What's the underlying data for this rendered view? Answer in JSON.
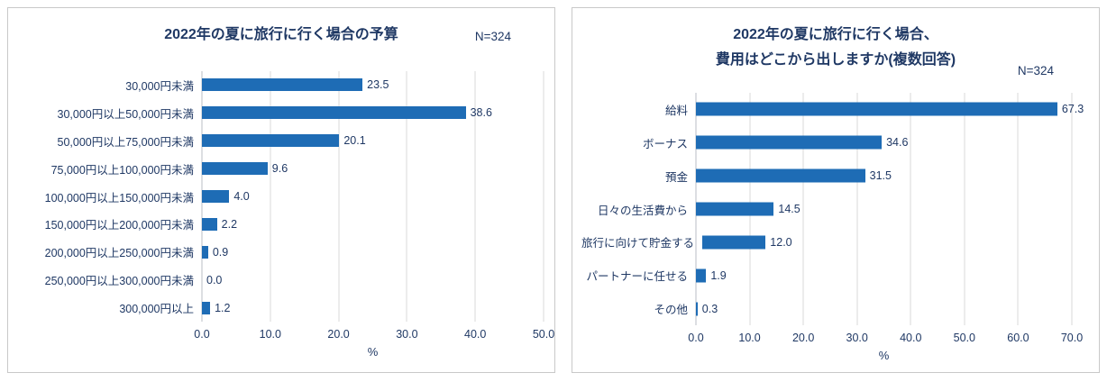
{
  "colors": {
    "bar": "#1E6CB5",
    "text": "#1F3864",
    "grid": "#D9D9D9",
    "panel_border": "#C9C9C9"
  },
  "chart_data": [
    {
      "type": "bar",
      "orientation": "horizontal",
      "title": "2022年の夏に旅行に行く場合の予算",
      "title_lines": [
        "2022年の夏に旅行に行く場合の予算"
      ],
      "n_label": "N=324",
      "categories": [
        "30,000円未満",
        "30,000円以上50,000円未満",
        "50,000円以上75,000円未満",
        "75,000円以上100,000円未満",
        "100,000円以上150,000円未満",
        "150,000円以上200,000円未満",
        "200,000円以上250,000円未満",
        "250,000円以上300,000円未満",
        "300,000円以上"
      ],
      "values": [
        23.5,
        38.6,
        20.1,
        9.6,
        4.0,
        2.2,
        0.9,
        0.0,
        1.2
      ],
      "xlabel": "%",
      "xlim": [
        0,
        50
      ],
      "xticks": [
        0,
        10,
        20,
        30,
        40,
        50
      ],
      "bar_color": "#1E6CB5",
      "grid": true,
      "legend": false
    },
    {
      "type": "bar",
      "orientation": "horizontal",
      "title": "2022年の夏に旅行に行く場合、費用はどこから出しますか(複数回答)",
      "title_lines": [
        "2022年の夏に旅行に行く場合、",
        "費用はどこから出しますか(複数回答)"
      ],
      "n_label": "N=324",
      "categories": [
        "給料",
        "ボーナス",
        "預金",
        "日々の生活費から",
        "旅行に向けて貯金する",
        "パートナーに任せる",
        "その他"
      ],
      "values": [
        67.3,
        34.6,
        31.5,
        14.5,
        12.0,
        1.9,
        0.3
      ],
      "xlabel": "%",
      "xlim": [
        0,
        70
      ],
      "xticks": [
        0,
        10,
        20,
        30,
        40,
        50,
        60,
        70
      ],
      "bar_color": "#1E6CB5",
      "grid": true,
      "legend": false
    }
  ]
}
